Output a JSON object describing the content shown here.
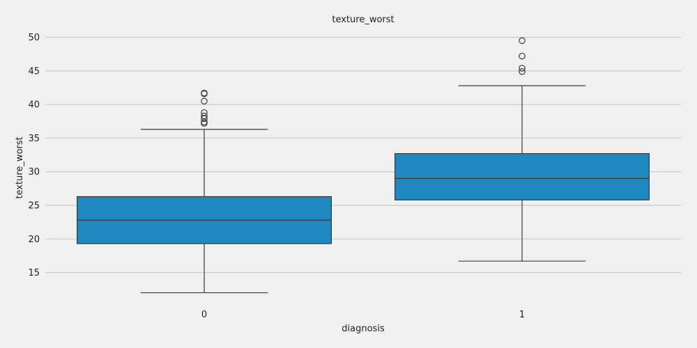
{
  "chart_data": {
    "type": "box",
    "title": "texture_worst",
    "xlabel": "diagnosis",
    "ylabel": "texture_worst",
    "categories": [
      "0",
      "1"
    ],
    "ylim": [
      10.3,
      51.2
    ],
    "yticks": [
      15,
      20,
      25,
      30,
      35,
      40,
      45,
      50
    ],
    "grid": true,
    "box_color": "#1f88c1",
    "boxes": [
      {
        "category": "0",
        "whisker_low": 12.0,
        "q1": 19.3,
        "median": 22.8,
        "q3": 26.3,
        "whisker_high": 36.3,
        "outliers": [
          37.2,
          37.4,
          37.9,
          38.3,
          38.8,
          40.5,
          41.6,
          41.7
        ]
      },
      {
        "category": "1",
        "whisker_low": 16.7,
        "q1": 25.8,
        "median": 29.0,
        "q3": 32.7,
        "whisker_high": 42.8,
        "outliers": [
          44.9,
          45.4,
          47.2,
          49.5
        ]
      }
    ]
  }
}
